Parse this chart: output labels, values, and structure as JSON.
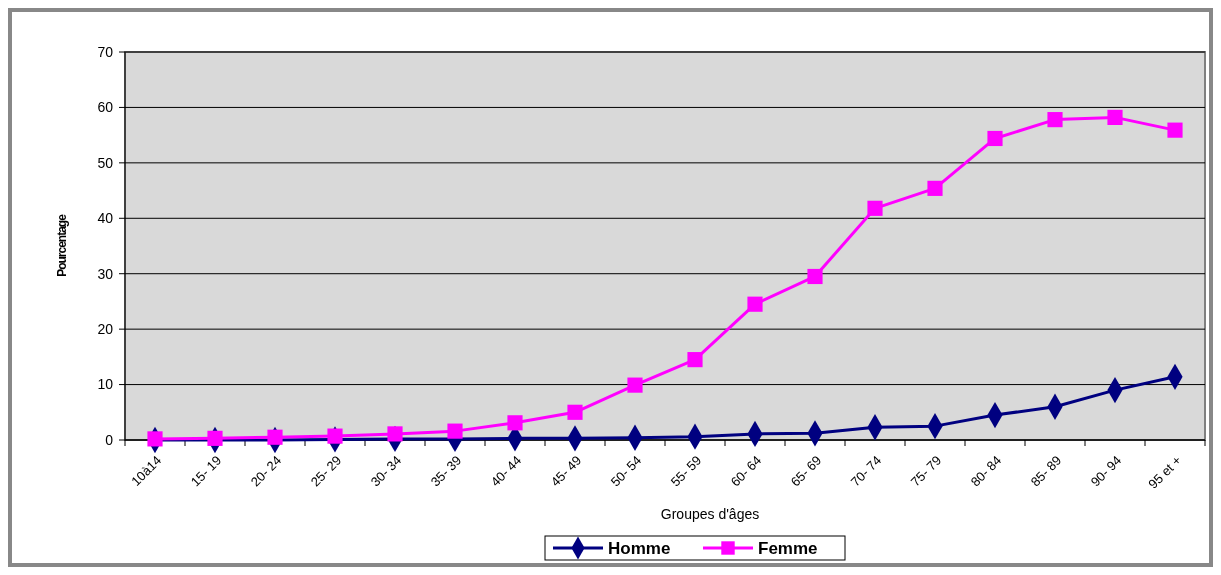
{
  "chart_data": {
    "type": "line",
    "xlabel": "Groupes d'âges",
    "ylabel": "Pourcentage",
    "categories": [
      "10à14",
      "15- 19",
      "20- 24",
      "25- 29",
      "30- 34",
      "35- 39",
      "40- 44",
      "45- 49",
      "50- 54",
      "55- 59",
      "60- 64",
      "65- 69",
      "70- 74",
      "75- 79",
      "80- 84",
      "85- 89",
      "90- 94",
      "95 et +"
    ],
    "series": [
      {
        "name": "Homme",
        "color": "#000080",
        "marker": "diamond",
        "values": [
          0,
          0,
          0,
          0.1,
          0.2,
          0.2,
          0.3,
          0.3,
          0.4,
          0.6,
          1.1,
          1.2,
          2.3,
          2.5,
          4.5,
          6.0,
          9.0,
          11.4
        ]
      },
      {
        "name": "Femme",
        "color": "#ff00ff",
        "marker": "square",
        "values": [
          0.2,
          0.3,
          0.5,
          0.7,
          1.1,
          1.6,
          3.1,
          5.0,
          9.9,
          14.5,
          24.5,
          29.5,
          41.8,
          45.4,
          54.4,
          57.8,
          58.2,
          55.9
        ]
      }
    ],
    "ylim": [
      0,
      70
    ],
    "yticks": [
      0,
      10,
      20,
      30,
      40,
      50,
      60,
      70
    ],
    "grid": "y",
    "legend": "bottom"
  }
}
